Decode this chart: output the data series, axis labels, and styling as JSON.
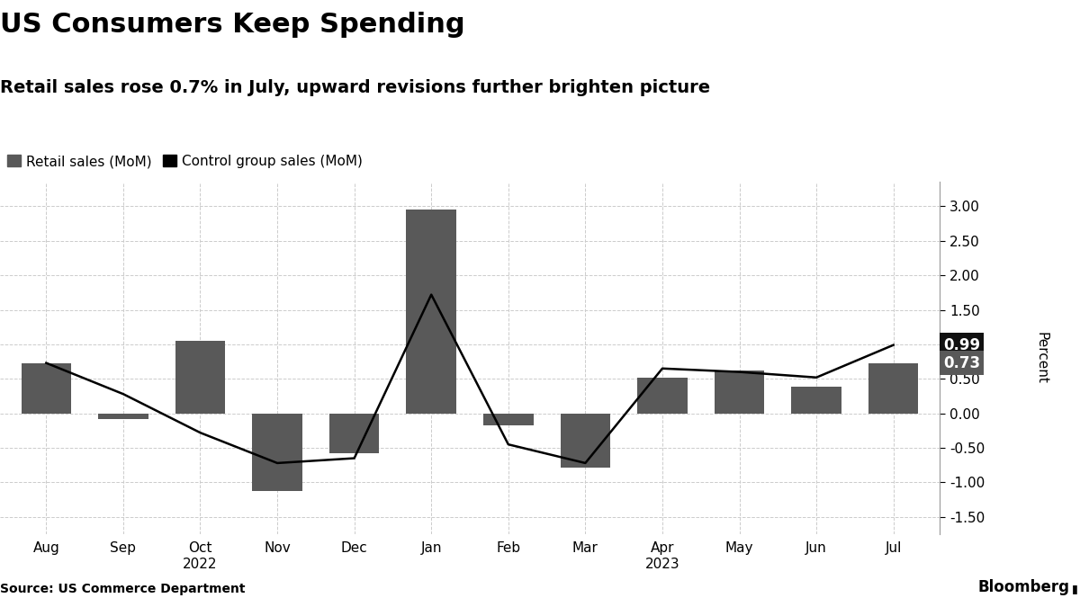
{
  "title": "US Consumers Keep Spending",
  "subtitle": "Retail sales rose 0.7% in July, upward revisions further brighten picture",
  "source": "Source: US Commerce Department",
  "bloomberg_label": "Bloomberg",
  "categories": [
    "Aug",
    "Sep",
    "Oct\n2022",
    "Nov",
    "Dec",
    "Jan",
    "Feb",
    "Mar",
    "Apr\n2023",
    "May",
    "Jun",
    "Jul"
  ],
  "retail_sales": [
    0.73,
    -0.08,
    1.05,
    -1.12,
    -0.58,
    2.95,
    -0.18,
    -0.78,
    0.52,
    0.62,
    0.38,
    0.73
  ],
  "control_group": [
    0.73,
    0.28,
    -0.28,
    -0.72,
    -0.65,
    1.72,
    -0.45,
    -0.72,
    0.65,
    0.6,
    0.52,
    0.99
  ],
  "bar_color": "#595959",
  "line_color": "#000000",
  "bg_color": "#ffffff",
  "grid_color": "#cccccc",
  "annotation_retail_bg": "#595959",
  "annotation_control_bg": "#111111",
  "annotation_retail_val": "0.73",
  "annotation_control_val": "0.99",
  "ylim_min": -1.75,
  "ylim_max": 3.35,
  "yticks": [
    -1.5,
    -1.0,
    -0.5,
    0.0,
    0.5,
    1.0,
    1.5,
    2.0,
    2.5,
    3.0
  ],
  "ylabel": "Percent",
  "title_fontsize": 22,
  "subtitle_fontsize": 14,
  "legend_fontsize": 11,
  "tick_fontsize": 11,
  "ylabel_fontsize": 11
}
